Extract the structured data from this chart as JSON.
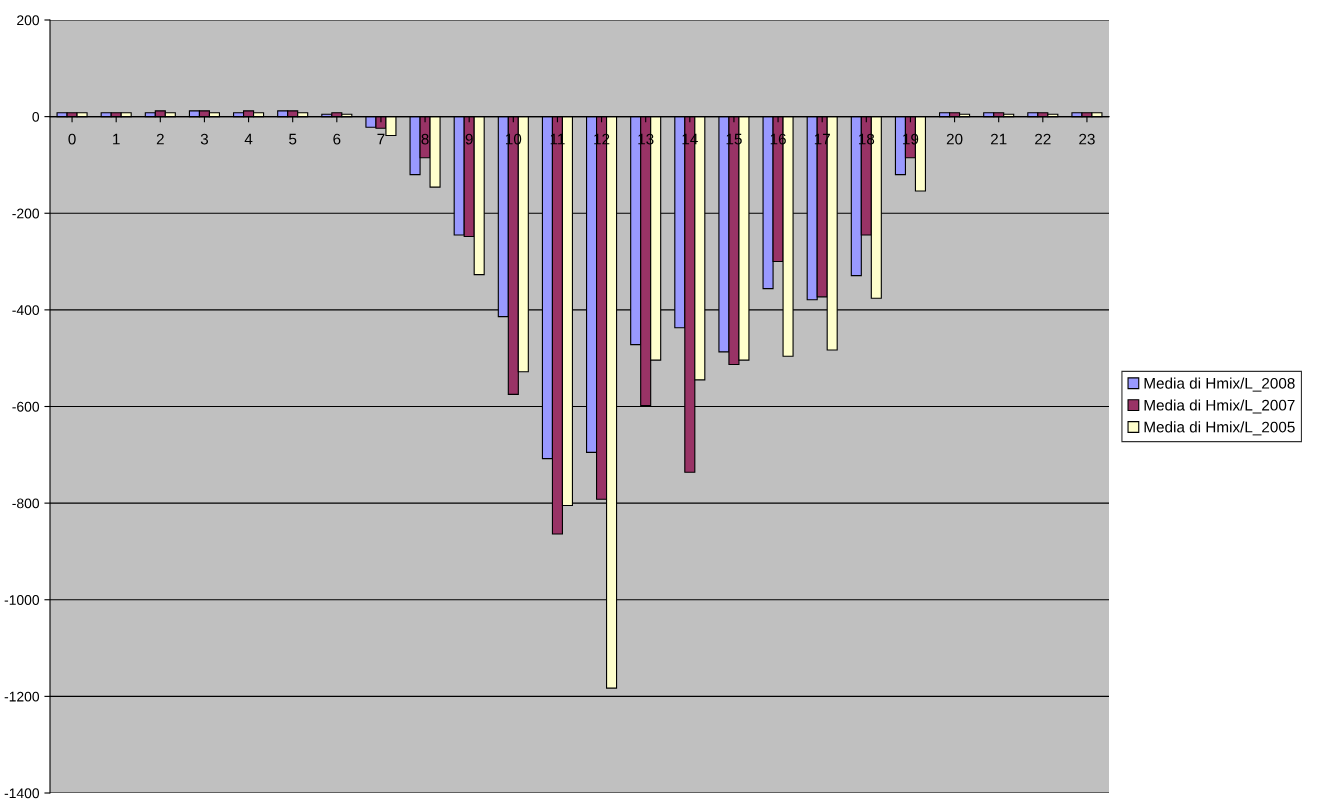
{
  "chart_data": {
    "type": "bar",
    "categories": [
      "0",
      "1",
      "2",
      "3",
      "4",
      "5",
      "6",
      "7",
      "8",
      "9",
      "10",
      "11",
      "12",
      "13",
      "14",
      "15",
      "16",
      "17",
      "18",
      "19",
      "20",
      "21",
      "22",
      "23"
    ],
    "series": [
      {
        "name": "Media di Hmix/L_2008",
        "color": "#9999ff",
        "values": [
          8,
          8,
          8,
          12,
          8,
          12,
          5,
          -22,
          -120,
          -245,
          -414,
          -708,
          -695,
          -472,
          -437,
          -487,
          -356,
          -379,
          -329,
          -120,
          8,
          8,
          8,
          8
        ]
      },
      {
        "name": "Media di Hmix/L_2007",
        "color": "#993366",
        "values": [
          8,
          8,
          12,
          12,
          12,
          12,
          8,
          -24,
          -85,
          -248,
          -575,
          -864,
          -792,
          -598,
          -736,
          -513,
          -300,
          -373,
          -245,
          -85,
          8,
          8,
          8,
          8
        ]
      },
      {
        "name": "Media di Hmix/L_2005",
        "color": "#ffffcc",
        "values": [
          8,
          8,
          8,
          8,
          8,
          8,
          5,
          -39,
          -146,
          -327,
          -528,
          -805,
          -1183,
          -504,
          -545,
          -504,
          -496,
          -483,
          -376,
          -154,
          5,
          5,
          5,
          8
        ]
      }
    ],
    "ylim": [
      -1400,
      200
    ],
    "yticks": [
      -1400,
      -1200,
      -1000,
      -800,
      -600,
      -400,
      -200,
      0,
      200
    ],
    "grid": "y",
    "legend": "right"
  }
}
